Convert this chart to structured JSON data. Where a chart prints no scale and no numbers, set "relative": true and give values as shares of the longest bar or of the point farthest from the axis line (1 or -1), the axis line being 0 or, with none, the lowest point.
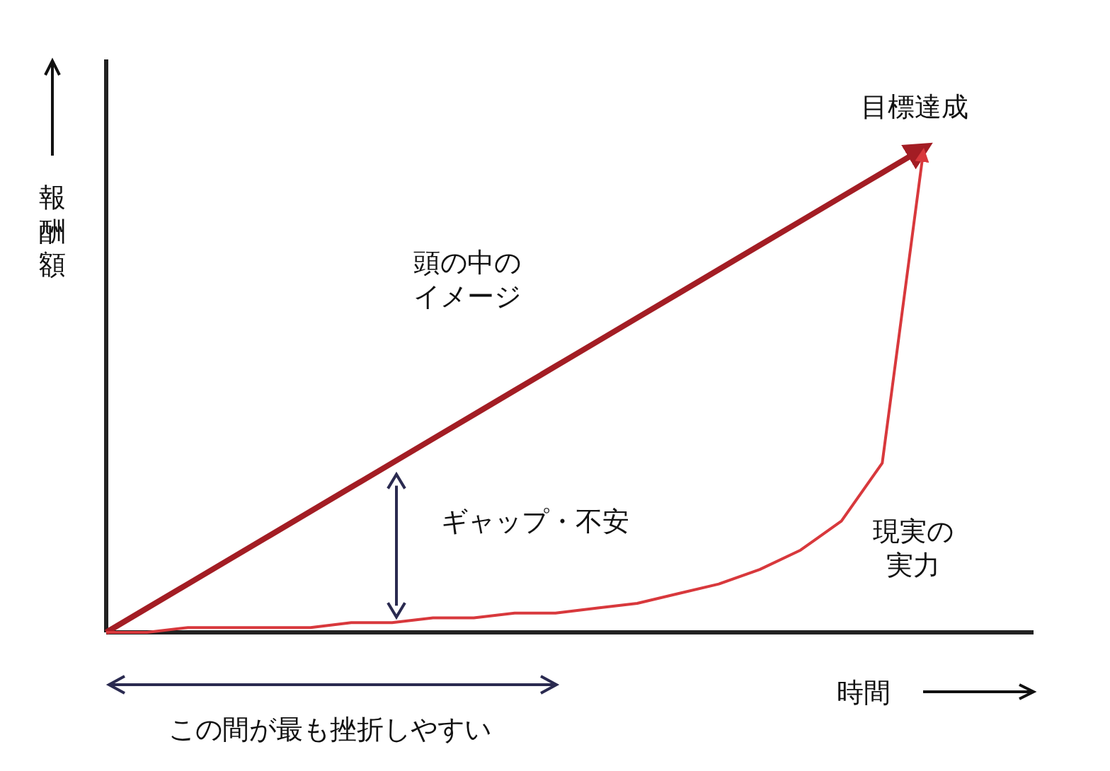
{
  "chart_data": {
    "type": "line",
    "relative": true,
    "xlabel": "時間",
    "ylabel": "報酬額",
    "categories": [
      null,
      null,
      null,
      null,
      null,
      null,
      null,
      null,
      null,
      null,
      null,
      null,
      null,
      null,
      null,
      null,
      null,
      null,
      null,
      null,
      null
    ],
    "series": [
      {
        "name": "頭の中のイメージ",
        "color": "#a31d24",
        "values": [
          0,
          0.05,
          0.1,
          0.15,
          0.2,
          0.25,
          0.3,
          0.35,
          0.4,
          0.45,
          0.5,
          0.55,
          0.6,
          0.65,
          0.7,
          0.75,
          0.8,
          0.85,
          0.9,
          0.95,
          1
        ]
      },
      {
        "name": "現実の実力",
        "color": "#d8383c",
        "values": [
          0,
          0,
          0.01,
          0.01,
          0.01,
          0.01,
          0.02,
          0.02,
          0.03,
          0.03,
          0.04,
          0.04,
          0.05,
          0.06,
          0.08,
          0.1,
          0.13,
          0.17,
          0.23,
          0.35,
          0.99
        ]
      }
    ],
    "annotations": [
      "目標達成",
      "ギャップ・不安",
      "この間が最も挫折しやすい"
    ],
    "legend": false
  }
}
